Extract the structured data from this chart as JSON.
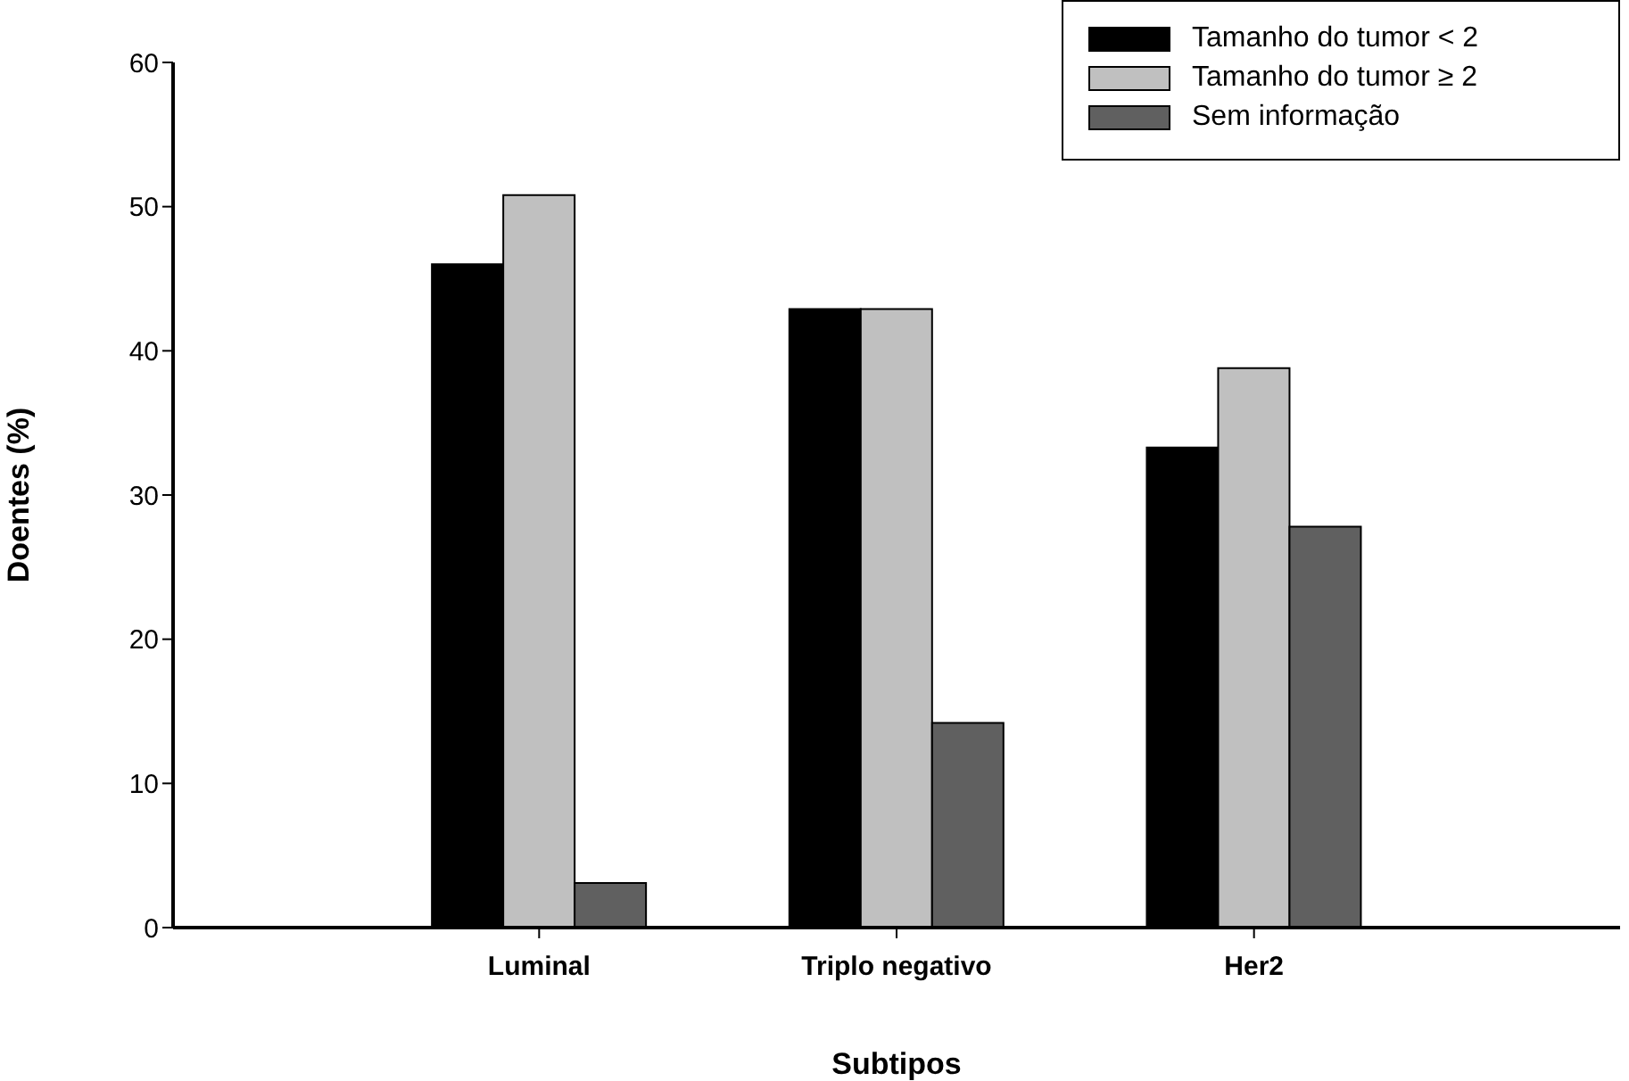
{
  "chart_data": {
    "type": "bar",
    "xlabel": "Subtipos",
    "ylabel": "Doentes (%)",
    "categories": [
      "Luminal",
      "Triplo negativo",
      "Her2"
    ],
    "series": [
      {
        "name": "Tamanho do tumor < 2",
        "color": "#000000",
        "values": [
          46.0,
          42.9,
          33.3
        ]
      },
      {
        "name": "Tamanho do tumor ≥ 2",
        "color": "#c0c0c0",
        "values": [
          50.8,
          42.9,
          38.8
        ]
      },
      {
        "name": "Sem informação",
        "color": "#606060",
        "values": [
          3.1,
          14.2,
          27.8
        ]
      }
    ],
    "ylim": [
      0,
      60
    ],
    "yticks": [
      0,
      10,
      20,
      30,
      40,
      50,
      60
    ],
    "grid": false,
    "legend": "top right"
  }
}
